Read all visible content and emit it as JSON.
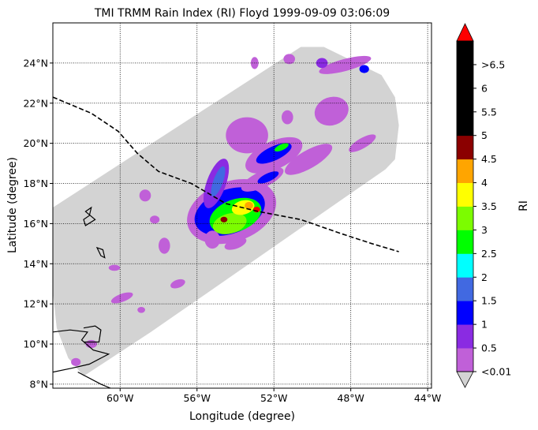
{
  "chart_data": {
    "type": "heatmap",
    "title": "TMI TRMM Rain Index (RI) Floyd 1999-09-09 03:06:09",
    "xlabel": "Longitude (degree)",
    "ylabel": "Latitude (degree)",
    "xlim": [
      -63.5,
      -43.8
    ],
    "ylim": [
      7.8,
      26.0
    ],
    "x_ticks": [
      {
        "value": -60,
        "label": "60°W"
      },
      {
        "value": -56,
        "label": "56°W"
      },
      {
        "value": -52,
        "label": "52°W"
      },
      {
        "value": -48,
        "label": "48°W"
      },
      {
        "value": -44,
        "label": "44°W"
      }
    ],
    "y_ticks": [
      {
        "value": 8,
        "label": "8°N"
      },
      {
        "value": 10,
        "label": "10°N"
      },
      {
        "value": 12,
        "label": "12°N"
      },
      {
        "value": 14,
        "label": "14°N"
      },
      {
        "value": 16,
        "label": "16°N"
      },
      {
        "value": 18,
        "label": "18°N"
      },
      {
        "value": 20,
        "label": "20°N"
      },
      {
        "value": 22,
        "label": "22°N"
      },
      {
        "value": 24,
        "label": "24°N"
      }
    ],
    "grid": true,
    "colorbar": {
      "label": "RI",
      "bins": [
        {
          "label": "<0.01",
          "color": "#c060d8"
        },
        {
          "label": "0.5",
          "color": "#8a2be2"
        },
        {
          "label": "1",
          "color": "#0000ff"
        },
        {
          "label": "1.5",
          "color": "#4169e1"
        },
        {
          "label": "2",
          "color": "#00ffff"
        },
        {
          "label": "2.5",
          "color": "#00ff00"
        },
        {
          "label": "3",
          "color": "#7cfc00"
        },
        {
          "label": "3.5",
          "color": "#ffff00"
        },
        {
          "label": "4",
          "color": "#ffa500"
        },
        {
          "label": "4.5",
          "color": "#8b0000"
        },
        {
          "label": "5",
          "color": "#000000"
        },
        {
          "label": "5.5",
          "color": "#000000"
        },
        {
          "label": "6",
          "color": "#000000"
        },
        {
          "label": ">6.5",
          "color": "#000000"
        }
      ],
      "over_color": "#ff0000",
      "under_color": "#d3d3d3"
    },
    "swath_color": "#d3d3d3",
    "swath_polygon": [
      [
        -63.5,
        16.8
      ],
      [
        -50.6,
        24.8
      ],
      [
        -49.4,
        24.8
      ],
      [
        -46.4,
        23.4
      ],
      [
        -45.7,
        22.3
      ],
      [
        -45.5,
        20.9
      ],
      [
        -45.7,
        19.2
      ],
      [
        -46.2,
        18.7
      ],
      [
        -58.4,
        10.6
      ],
      [
        -61.9,
        8.4
      ],
      [
        -62.7,
        9.3
      ],
      [
        -63.3,
        10.8
      ],
      [
        -63.5,
        12.6
      ]
    ],
    "track": {
      "style": "dashed",
      "color": "#000000",
      "points": [
        [
          -63.5,
          22.3
        ],
        [
          -61.5,
          21.5
        ],
        [
          -60.1,
          20.6
        ],
        [
          -59.1,
          19.5
        ],
        [
          -58.0,
          18.6
        ],
        [
          -56.3,
          18.0
        ],
        [
          -54.5,
          17.0
        ],
        [
          -52.8,
          16.6
        ],
        [
          -50.6,
          16.2
        ],
        [
          -48.5,
          15.5
        ],
        [
          -46.9,
          15.0
        ],
        [
          -45.5,
          14.6
        ]
      ]
    },
    "rain_regions": [
      {
        "lon": -54.2,
        "lat": 16.6,
        "rlon": 2.4,
        "rlat": 1.5,
        "ri": 0.3,
        "rot": -20
      },
      {
        "lon": -54.3,
        "lat": 16.6,
        "rlon": 1.9,
        "rlat": 1.1,
        "ri": 1.2,
        "rot": -20
      },
      {
        "lon": -54.0,
        "lat": 16.4,
        "rlon": 1.4,
        "rlat": 0.8,
        "ri": 2.5,
        "rot": -20
      },
      {
        "lon": -54.3,
        "lat": 16.0,
        "rlon": 0.9,
        "rlat": 0.5,
        "ri": 3.2,
        "rot": -15
      },
      {
        "lon": -53.6,
        "lat": 16.8,
        "rlon": 0.6,
        "rlat": 0.35,
        "ri": 3.6,
        "rot": -15
      },
      {
        "lon": -53.3,
        "lat": 16.9,
        "rlon": 0.22,
        "rlat": 0.18,
        "ri": 4.2,
        "rot": 0
      },
      {
        "lon": -52.9,
        "lat": 16.7,
        "rlon": 0.18,
        "rlat": 0.14,
        "ri": 6.6,
        "rot": 0
      },
      {
        "lon": -54.6,
        "lat": 16.2,
        "rlon": 0.18,
        "rlat": 0.14,
        "ri": 4.7,
        "rot": 0
      },
      {
        "lon": -55.0,
        "lat": 18.0,
        "rlon": 0.5,
        "rlat": 1.3,
        "ri": 0.6,
        "rot": 20
      },
      {
        "lon": -54.9,
        "lat": 18.1,
        "rlon": 0.25,
        "rlat": 0.8,
        "ri": 1.7,
        "rot": 20
      },
      {
        "lon": -52.0,
        "lat": 19.4,
        "rlon": 1.6,
        "rlat": 0.7,
        "ri": 0.3,
        "rot": -25
      },
      {
        "lon": -52.0,
        "lat": 19.5,
        "rlon": 1.0,
        "rlat": 0.35,
        "ri": 1.2,
        "rot": -25
      },
      {
        "lon": -51.6,
        "lat": 19.8,
        "rlon": 0.4,
        "rlat": 0.15,
        "ri": 2.6,
        "rot": -25
      },
      {
        "lon": -53.4,
        "lat": 20.4,
        "rlon": 1.1,
        "rlat": 0.9,
        "ri": 0.3,
        "rot": 0
      },
      {
        "lon": -52.6,
        "lat": 18.2,
        "rlon": 1.2,
        "rlat": 0.4,
        "ri": 0.3,
        "rot": -25
      },
      {
        "lon": -52.3,
        "lat": 18.3,
        "rlon": 0.6,
        "rlat": 0.2,
        "ri": 1.2,
        "rot": -25
      },
      {
        "lon": -50.2,
        "lat": 19.2,
        "rlon": 1.4,
        "rlat": 0.45,
        "ri": 0.3,
        "rot": -30
      },
      {
        "lon": -47.4,
        "lat": 20.0,
        "rlon": 0.8,
        "rlat": 0.25,
        "ri": 0.3,
        "rot": -30
      },
      {
        "lon": -49.0,
        "lat": 21.6,
        "rlon": 0.9,
        "rlat": 0.7,
        "ri": 0.3,
        "rot": -20
      },
      {
        "lon": -48.3,
        "lat": 23.9,
        "rlon": 1.4,
        "rlat": 0.3,
        "ri": 0.3,
        "rot": -15
      },
      {
        "lon": -49.5,
        "lat": 24.0,
        "rlon": 0.3,
        "rlat": 0.25,
        "ri": 0.8,
        "rot": 0
      },
      {
        "lon": -47.3,
        "lat": 23.7,
        "rlon": 0.25,
        "rlat": 0.2,
        "ri": 1.2,
        "rot": 0
      },
      {
        "lon": -51.2,
        "lat": 24.2,
        "rlon": 0.3,
        "rlat": 0.25,
        "ri": 0.3,
        "rot": 0
      },
      {
        "lon": -53.0,
        "lat": 24.0,
        "rlon": 0.2,
        "rlat": 0.3,
        "ri": 0.3,
        "rot": 0
      },
      {
        "lon": -55.2,
        "lat": 15.2,
        "rlon": 0.4,
        "rlat": 0.45,
        "ri": 0.3,
        "rot": 0
      },
      {
        "lon": -57.7,
        "lat": 14.9,
        "rlon": 0.3,
        "rlat": 0.4,
        "ri": 0.3,
        "rot": 0
      },
      {
        "lon": -58.7,
        "lat": 17.4,
        "rlon": 0.3,
        "rlat": 0.3,
        "ri": 0.3,
        "rot": 0
      },
      {
        "lon": -57.0,
        "lat": 13.0,
        "rlon": 0.4,
        "rlat": 0.2,
        "ri": 0.3,
        "rot": -20
      },
      {
        "lon": -54.0,
        "lat": 15.0,
        "rlon": 0.6,
        "rlat": 0.25,
        "ri": 0.3,
        "rot": -20
      },
      {
        "lon": -59.9,
        "lat": 12.3,
        "rlon": 0.6,
        "rlat": 0.2,
        "ri": 0.3,
        "rot": -20
      },
      {
        "lon": -58.9,
        "lat": 11.7,
        "rlon": 0.2,
        "rlat": 0.15,
        "ri": 0.3,
        "rot": 0
      },
      {
        "lon": -61.5,
        "lat": 10.0,
        "rlon": 0.3,
        "rlat": 0.2,
        "ri": 0.3,
        "rot": 0
      },
      {
        "lon": -62.3,
        "lat": 9.1,
        "rlon": 0.25,
        "rlat": 0.2,
        "ri": 0.3,
        "rot": 0
      },
      {
        "lon": -60.3,
        "lat": 13.8,
        "rlon": 0.3,
        "rlat": 0.15,
        "ri": 0.3,
        "rot": 0
      },
      {
        "lon": -58.2,
        "lat": 16.2,
        "rlon": 0.25,
        "rlat": 0.2,
        "ri": 0.3,
        "rot": 0
      },
      {
        "lon": -51.3,
        "lat": 21.3,
        "rlon": 0.3,
        "rlat": 0.35,
        "ri": 0.3,
        "rot": 0
      }
    ],
    "islands": [
      [
        [
          -61.9,
          16.2
        ],
        [
          -61.6,
          16.4
        ],
        [
          -61.5,
          16.8
        ],
        [
          -61.8,
          16.6
        ],
        [
          -61.3,
          16.2
        ],
        [
          -61.8,
          15.9
        ],
        [
          -61.9,
          16.2
        ]
      ],
      [
        [
          -61.2,
          14.8
        ],
        [
          -60.9,
          14.7
        ],
        [
          -60.8,
          14.3
        ],
        [
          -61.0,
          14.4
        ],
        [
          -61.2,
          14.8
        ]
      ]
    ],
    "coastline": [
      [
        [
          -63.5,
          10.6
        ],
        [
          -62.6,
          10.7
        ],
        [
          -61.7,
          10.6
        ],
        [
          -62.0,
          10.2
        ],
        [
          -61.4,
          9.7
        ],
        [
          -60.6,
          9.5
        ],
        [
          -61.6,
          9.0
        ],
        [
          -62.5,
          8.8
        ],
        [
          -63.5,
          8.6
        ]
      ],
      [
        [
          -61.9,
          10.8
        ],
        [
          -61.3,
          10.9
        ],
        [
          -61.0,
          10.7
        ],
        [
          -61.1,
          10.1
        ],
        [
          -61.9,
          10.1
        ]
      ],
      [
        [
          -62.2,
          8.6
        ],
        [
          -61.0,
          8.0
        ],
        [
          -60.5,
          7.8
        ]
      ]
    ]
  }
}
